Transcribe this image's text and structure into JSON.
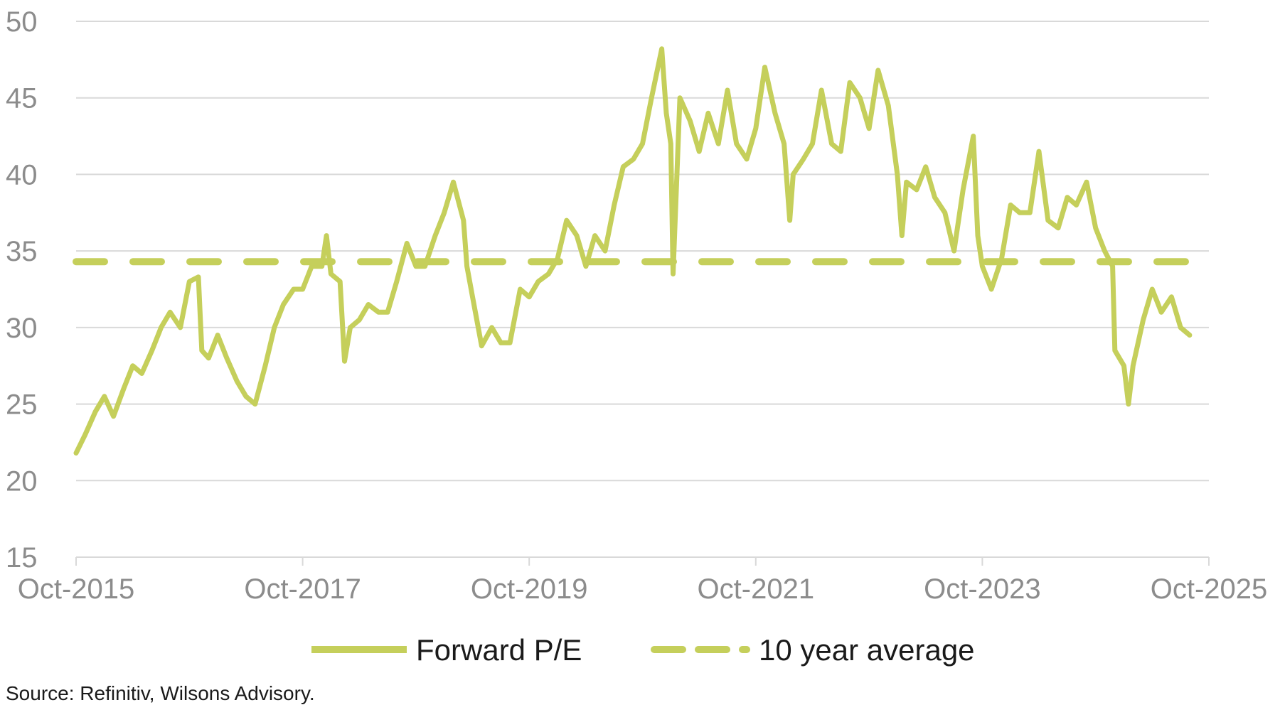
{
  "chart_data": {
    "type": "line",
    "xlabel": "",
    "ylabel": "",
    "x_ticks": [
      "Oct-2015",
      "Oct-2017",
      "Oct-2019",
      "Oct-2021",
      "Oct-2023",
      "Oct-2025"
    ],
    "x_range": [
      2015.75,
      2025.75
    ],
    "y_ticks": [
      15,
      20,
      25,
      30,
      35,
      40,
      45,
      50
    ],
    "ylim": [
      15,
      50
    ],
    "grid": "horizontal",
    "legend_position": "bottom",
    "colors": {
      "series": "#c5cf5b",
      "grid": "#d9d9d9",
      "axis": "#d9d9d9"
    },
    "series": [
      {
        "name": "Forward P/E",
        "style": "solid",
        "points": [
          [
            2015.75,
            21.8
          ],
          [
            2015.83,
            23.0
          ],
          [
            2015.92,
            24.5
          ],
          [
            2016.0,
            25.5
          ],
          [
            2016.08,
            24.2
          ],
          [
            2016.17,
            26.0
          ],
          [
            2016.25,
            27.5
          ],
          [
            2016.33,
            27.0
          ],
          [
            2016.42,
            28.5
          ],
          [
            2016.5,
            30.0
          ],
          [
            2016.58,
            31.0
          ],
          [
            2016.67,
            30.0
          ],
          [
            2016.75,
            33.0
          ],
          [
            2016.83,
            33.3
          ],
          [
            2016.86,
            28.5
          ],
          [
            2016.92,
            28.0
          ],
          [
            2017.0,
            29.5
          ],
          [
            2017.08,
            28.0
          ],
          [
            2017.17,
            26.5
          ],
          [
            2017.25,
            25.5
          ],
          [
            2017.33,
            25.0
          ],
          [
            2017.42,
            27.5
          ],
          [
            2017.5,
            30.0
          ],
          [
            2017.58,
            31.5
          ],
          [
            2017.67,
            32.5
          ],
          [
            2017.75,
            32.5
          ],
          [
            2017.83,
            34.0
          ],
          [
            2017.92,
            34.0
          ],
          [
            2017.96,
            36.0
          ],
          [
            2018.0,
            33.5
          ],
          [
            2018.08,
            33.0
          ],
          [
            2018.12,
            27.8
          ],
          [
            2018.17,
            30.0
          ],
          [
            2018.25,
            30.5
          ],
          [
            2018.33,
            31.5
          ],
          [
            2018.42,
            31.0
          ],
          [
            2018.5,
            31.0
          ],
          [
            2018.58,
            33.0
          ],
          [
            2018.67,
            35.5
          ],
          [
            2018.75,
            34.0
          ],
          [
            2018.83,
            34.0
          ],
          [
            2018.92,
            36.0
          ],
          [
            2019.0,
            37.5
          ],
          [
            2019.08,
            39.5
          ],
          [
            2019.17,
            37.0
          ],
          [
            2019.2,
            34.0
          ],
          [
            2019.25,
            32.0
          ],
          [
            2019.33,
            28.8
          ],
          [
            2019.42,
            30.0
          ],
          [
            2019.5,
            29.0
          ],
          [
            2019.58,
            29.0
          ],
          [
            2019.67,
            32.5
          ],
          [
            2019.75,
            32.0
          ],
          [
            2019.83,
            33.0
          ],
          [
            2019.92,
            33.5
          ],
          [
            2020.0,
            34.5
          ],
          [
            2020.08,
            37.0
          ],
          [
            2020.17,
            36.0
          ],
          [
            2020.25,
            34.0
          ],
          [
            2020.33,
            36.0
          ],
          [
            2020.42,
            35.0
          ],
          [
            2020.5,
            38.0
          ],
          [
            2020.58,
            40.5
          ],
          [
            2020.67,
            41.0
          ],
          [
            2020.75,
            42.0
          ],
          [
            2020.83,
            45.0
          ],
          [
            2020.92,
            48.2
          ],
          [
            2020.96,
            44.0
          ],
          [
            2021.0,
            42.0
          ],
          [
            2021.02,
            33.5
          ],
          [
            2021.08,
            45.0
          ],
          [
            2021.17,
            43.5
          ],
          [
            2021.25,
            41.5
          ],
          [
            2021.33,
            44.0
          ],
          [
            2021.42,
            42.0
          ],
          [
            2021.5,
            45.5
          ],
          [
            2021.58,
            42.0
          ],
          [
            2021.67,
            41.0
          ],
          [
            2021.75,
            43.0
          ],
          [
            2021.83,
            47.0
          ],
          [
            2021.92,
            44.0
          ],
          [
            2022.0,
            42.0
          ],
          [
            2022.05,
            37.0
          ],
          [
            2022.08,
            40.0
          ],
          [
            2022.17,
            41.0
          ],
          [
            2022.25,
            42.0
          ],
          [
            2022.33,
            45.5
          ],
          [
            2022.42,
            42.0
          ],
          [
            2022.5,
            41.5
          ],
          [
            2022.58,
            46.0
          ],
          [
            2022.67,
            45.0
          ],
          [
            2022.75,
            43.0
          ],
          [
            2022.83,
            46.8
          ],
          [
            2022.92,
            44.5
          ],
          [
            2023.0,
            40.0
          ],
          [
            2023.04,
            36.0
          ],
          [
            2023.08,
            39.5
          ],
          [
            2023.17,
            39.0
          ],
          [
            2023.25,
            40.5
          ],
          [
            2023.33,
            38.5
          ],
          [
            2023.42,
            37.5
          ],
          [
            2023.5,
            35.0
          ],
          [
            2023.58,
            39.0
          ],
          [
            2023.67,
            42.5
          ],
          [
            2023.71,
            36.0
          ],
          [
            2023.75,
            34.0
          ],
          [
            2023.83,
            32.5
          ],
          [
            2023.92,
            34.5
          ],
          [
            2024.0,
            38.0
          ],
          [
            2024.08,
            37.5
          ],
          [
            2024.17,
            37.5
          ],
          [
            2024.25,
            41.5
          ],
          [
            2024.33,
            37.0
          ],
          [
            2024.42,
            36.5
          ],
          [
            2024.5,
            38.5
          ],
          [
            2024.58,
            38.0
          ],
          [
            2024.67,
            39.5
          ],
          [
            2024.75,
            36.5
          ],
          [
            2024.83,
            35.0
          ],
          [
            2024.9,
            34.0
          ],
          [
            2024.92,
            28.5
          ],
          [
            2025.0,
            27.5
          ],
          [
            2025.04,
            25.0
          ],
          [
            2025.08,
            27.5
          ],
          [
            2025.17,
            30.5
          ],
          [
            2025.25,
            32.5
          ],
          [
            2025.33,
            31.0
          ],
          [
            2025.42,
            32.0
          ],
          [
            2025.5,
            30.0
          ],
          [
            2025.58,
            29.5
          ]
        ]
      },
      {
        "name": "10 year average",
        "style": "dashed",
        "value": 34.3
      }
    ]
  },
  "source_note": "Source: Refinitiv, Wilsons Advisory."
}
